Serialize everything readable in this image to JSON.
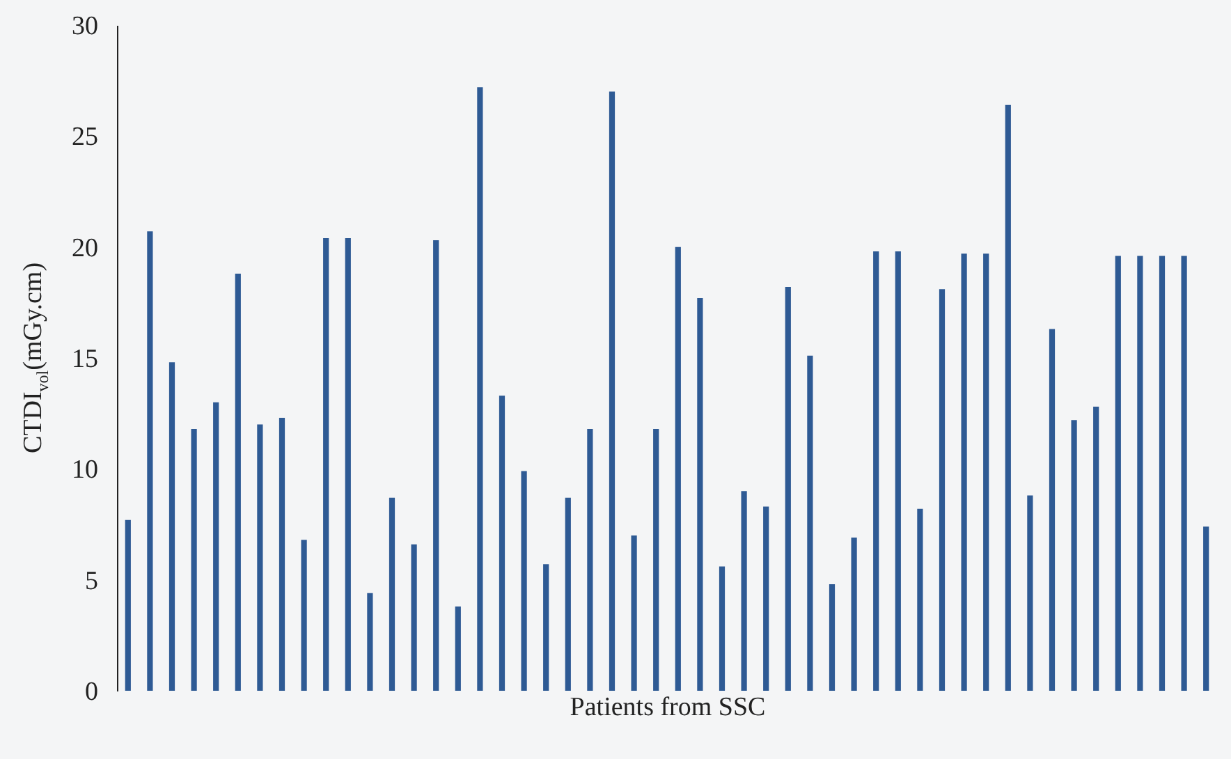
{
  "chart_data": {
    "type": "bar",
    "xlabel": "Patients from SSC",
    "ylabel": "CTDI$_{vol}$(mGy.cm)",
    "categories": [
      null,
      null,
      null,
      null,
      null,
      null,
      null,
      null,
      null,
      null,
      null,
      null,
      null,
      null,
      null,
      null,
      null,
      null,
      null,
      null,
      null,
      null,
      null,
      null,
      null,
      null,
      null,
      null,
      null,
      null,
      null,
      null,
      null,
      null,
      null,
      null,
      null,
      null,
      null,
      null,
      null,
      null,
      null,
      null,
      null,
      null,
      null,
      null,
      null,
      null
    ],
    "values": [
      7.7,
      20.7,
      14.8,
      11.8,
      13.0,
      18.8,
      12.0,
      12.3,
      6.8,
      20.4,
      20.4,
      4.4,
      8.7,
      6.6,
      20.3,
      3.8,
      27.2,
      13.3,
      9.9,
      5.7,
      8.7,
      11.8,
      27.0,
      7.0,
      11.8,
      20.0,
      17.7,
      5.6,
      9.0,
      8.3,
      18.2,
      15.1,
      4.8,
      6.9,
      19.8,
      19.8,
      8.2,
      18.1,
      19.7,
      19.7,
      26.4,
      8.8,
      16.3,
      12.2,
      12.8,
      19.6,
      19.6,
      19.6,
      19.6,
      7.4
    ],
    "color": "#2e5a94",
    "ylim": [
      0,
      30
    ],
    "yticks": [
      0,
      5,
      10,
      15,
      20,
      25,
      30
    ],
    "grid": false
  }
}
